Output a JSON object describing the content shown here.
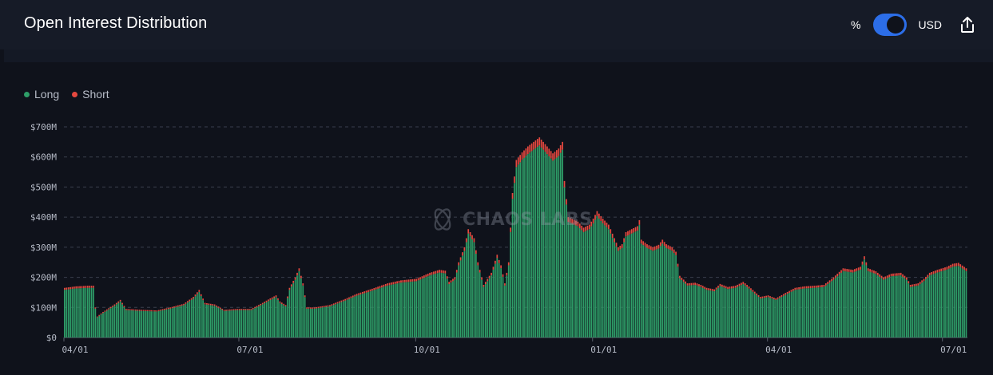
{
  "header": {
    "title": "Open Interest Distribution"
  },
  "controls": {
    "percent_label": "%",
    "usd_label": "USD",
    "toggle_state": "USD"
  },
  "watermark": {
    "text": "CHAOS LABS"
  },
  "legend": [
    {
      "label": "Long",
      "color": "#2e9e68"
    },
    {
      "label": "Short",
      "color": "#e5483f"
    }
  ],
  "chart_data": {
    "type": "bar",
    "stacked": true,
    "title": "Open Interest Distribution",
    "xlabel": "",
    "ylabel": "",
    "ylim": [
      0,
      700
    ],
    "y_unit": "$M",
    "y_ticks": [
      {
        "value": 0,
        "label": "$0"
      },
      {
        "value": 100,
        "label": "$100M"
      },
      {
        "value": 200,
        "label": "$200M"
      },
      {
        "value": 300,
        "label": "$300M"
      },
      {
        "value": 400,
        "label": "$400M"
      },
      {
        "value": 500,
        "label": "$500M"
      },
      {
        "value": 600,
        "label": "$600M"
      },
      {
        "value": 700,
        "label": "$700M"
      }
    ],
    "x_ticks": [
      {
        "label": "04/01",
        "index": 0
      },
      {
        "label": "07/01",
        "index": 91
      },
      {
        "label": "10/01",
        "index": 183
      },
      {
        "label": "01/01",
        "index": 275
      },
      {
        "label": "04/01",
        "index": 366
      },
      {
        "label": "07/01",
        "index": 457
      }
    ],
    "grid": true,
    "legend_position": "top-left",
    "day_count": 470,
    "short_share": 0.04,
    "series_total_keyframes": [
      [
        0,
        165
      ],
      [
        6,
        170
      ],
      [
        12,
        172
      ],
      [
        15,
        172
      ],
      [
        16,
        100
      ],
      [
        17,
        70
      ],
      [
        20,
        85
      ],
      [
        26,
        110
      ],
      [
        29,
        125
      ],
      [
        32,
        95
      ],
      [
        40,
        92
      ],
      [
        48,
        90
      ],
      [
        55,
        100
      ],
      [
        62,
        112
      ],
      [
        67,
        135
      ],
      [
        70,
        158
      ],
      [
        73,
        115
      ],
      [
        78,
        110
      ],
      [
        83,
        92
      ],
      [
        90,
        95
      ],
      [
        97,
        95
      ],
      [
        103,
        115
      ],
      [
        107,
        130
      ],
      [
        110,
        140
      ],
      [
        112,
        120
      ],
      [
        115,
        108
      ],
      [
        117,
        165
      ],
      [
        120,
        200
      ],
      [
        122,
        230
      ],
      [
        124,
        180
      ],
      [
        126,
        100
      ],
      [
        130,
        100
      ],
      [
        138,
        108
      ],
      [
        146,
        128
      ],
      [
        152,
        145
      ],
      [
        160,
        162
      ],
      [
        168,
        180
      ],
      [
        175,
        190
      ],
      [
        183,
        195
      ],
      [
        190,
        215
      ],
      [
        195,
        225
      ],
      [
        198,
        222
      ],
      [
        200,
        185
      ],
      [
        203,
        200
      ],
      [
        205,
        250
      ],
      [
        208,
        300
      ],
      [
        210,
        360
      ],
      [
        213,
        330
      ],
      [
        215,
        250
      ],
      [
        218,
        175
      ],
      [
        222,
        215
      ],
      [
        225,
        275
      ],
      [
        227,
        240
      ],
      [
        229,
        180
      ],
      [
        231,
        250
      ],
      [
        233,
        480
      ],
      [
        235,
        590
      ],
      [
        238,
        615
      ],
      [
        241,
        635
      ],
      [
        244,
        650
      ],
      [
        247,
        665
      ],
      [
        251,
        635
      ],
      [
        254,
        612
      ],
      [
        257,
        628
      ],
      [
        259,
        650
      ],
      [
        260,
        520
      ],
      [
        262,
        400
      ],
      [
        267,
        385
      ],
      [
        270,
        365
      ],
      [
        273,
        375
      ],
      [
        275,
        395
      ],
      [
        277,
        420
      ],
      [
        280,
        395
      ],
      [
        283,
        375
      ],
      [
        286,
        330
      ],
      [
        288,
        300
      ],
      [
        290,
        310
      ],
      [
        292,
        350
      ],
      [
        295,
        360
      ],
      [
        298,
        370
      ],
      [
        299,
        390
      ],
      [
        300,
        325
      ],
      [
        303,
        310
      ],
      [
        306,
        300
      ],
      [
        309,
        308
      ],
      [
        311,
        325
      ],
      [
        313,
        310
      ],
      [
        316,
        300
      ],
      [
        318,
        285
      ],
      [
        320,
        205
      ],
      [
        324,
        180
      ],
      [
        328,
        182
      ],
      [
        331,
        175
      ],
      [
        334,
        165
      ],
      [
        338,
        160
      ],
      [
        341,
        178
      ],
      [
        345,
        168
      ],
      [
        349,
        172
      ],
      [
        353,
        185
      ],
      [
        355,
        175
      ],
      [
        358,
        158
      ],
      [
        362,
        135
      ],
      [
        366,
        140
      ],
      [
        370,
        130
      ],
      [
        375,
        148
      ],
      [
        380,
        165
      ],
      [
        385,
        170
      ],
      [
        390,
        172
      ],
      [
        395,
        175
      ],
      [
        400,
        200
      ],
      [
        405,
        230
      ],
      [
        410,
        225
      ],
      [
        414,
        235
      ],
      [
        416,
        270
      ],
      [
        418,
        230
      ],
      [
        422,
        220
      ],
      [
        426,
        200
      ],
      [
        430,
        212
      ],
      [
        435,
        215
      ],
      [
        438,
        200
      ],
      [
        440,
        175
      ],
      [
        444,
        180
      ],
      [
        447,
        195
      ],
      [
        450,
        215
      ],
      [
        454,
        225
      ],
      [
        459,
        235
      ],
      [
        462,
        245
      ],
      [
        465,
        248
      ],
      [
        469,
        230
      ]
    ]
  }
}
